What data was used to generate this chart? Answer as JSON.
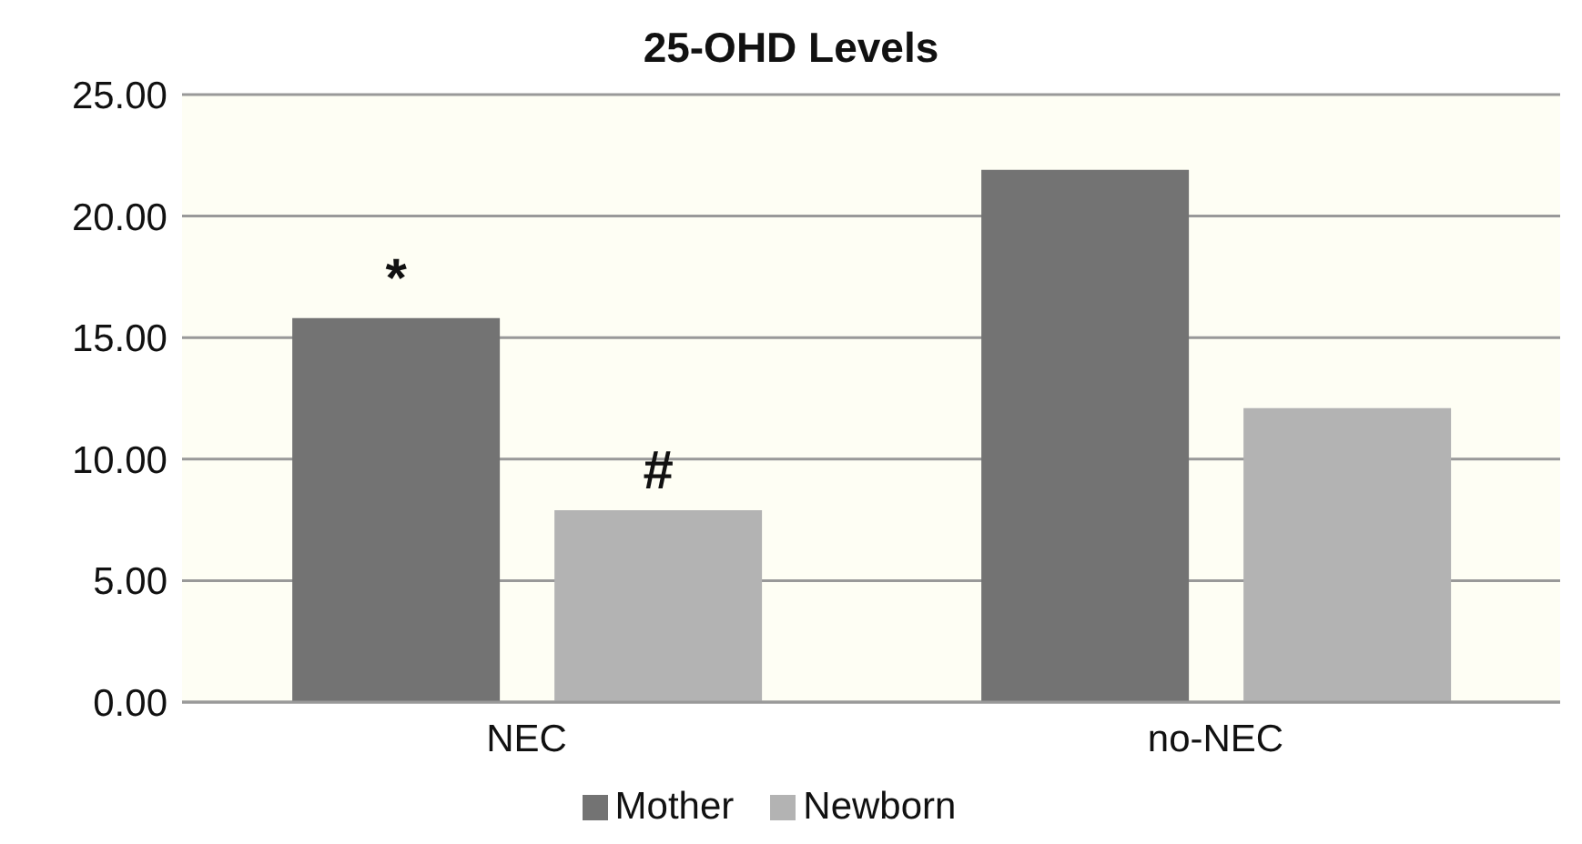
{
  "chart_data": {
    "type": "bar",
    "title": "25-OHD Levels",
    "categories": [
      "NEC",
      "no-NEC"
    ],
    "series": [
      {
        "name": "Mother",
        "color": "#737373",
        "values": [
          15.8,
          21.9
        ],
        "value_labels": [
          "*",
          null
        ]
      },
      {
        "name": "Newborn",
        "color": "#b3b3b3",
        "values": [
          7.9,
          12.1
        ],
        "value_labels": [
          "#",
          null
        ]
      }
    ],
    "ylim": [
      0,
      25
    ],
    "yticks": [
      {
        "value": 0,
        "label": "0.00"
      },
      {
        "value": 5,
        "label": "5.00"
      },
      {
        "value": 10,
        "label": "10.00"
      },
      {
        "value": 15,
        "label": "15.00"
      },
      {
        "value": 20,
        "label": "20.00"
      },
      {
        "value": 25,
        "label": "25.00"
      }
    ],
    "grid": "y",
    "legend": "bottom"
  }
}
